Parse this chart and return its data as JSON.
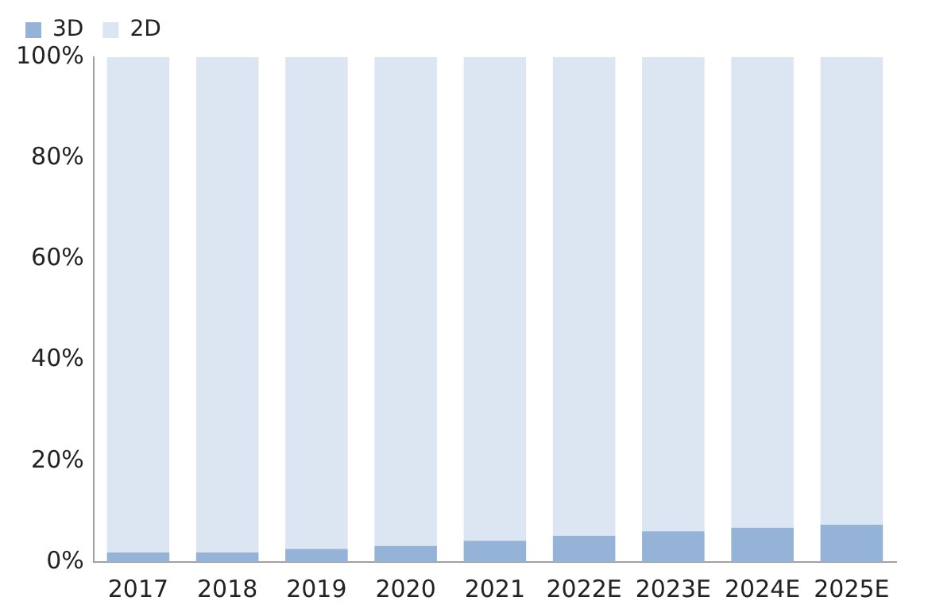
{
  "chart_data": {
    "type": "bar",
    "stacked": true,
    "categories": [
      "2017",
      "2018",
      "2019",
      "2020",
      "2021",
      "2022E",
      "2023E",
      "2024E",
      "2025E"
    ],
    "series": [
      {
        "name": "3D",
        "color": "#95b3d7",
        "values": [
          1.9,
          1.9,
          2.6,
          3.2,
          4.2,
          5.2,
          6.1,
          6.8,
          7.4
        ]
      },
      {
        "name": "2D",
        "color": "#dce6f2",
        "values": [
          98.1,
          98.1,
          97.4,
          96.8,
          95.8,
          94.8,
          93.9,
          93.2,
          92.6
        ]
      }
    ],
    "ylim": [
      0,
      100
    ],
    "yticks": [
      {
        "value": 0,
        "label": "0%"
      },
      {
        "value": 20,
        "label": "20%"
      },
      {
        "value": 40,
        "label": "40%"
      },
      {
        "value": 60,
        "label": "60%"
      },
      {
        "value": 80,
        "label": "80%"
      },
      {
        "value": 100,
        "label": "100%"
      }
    ],
    "grid": false,
    "legend": "top left"
  }
}
